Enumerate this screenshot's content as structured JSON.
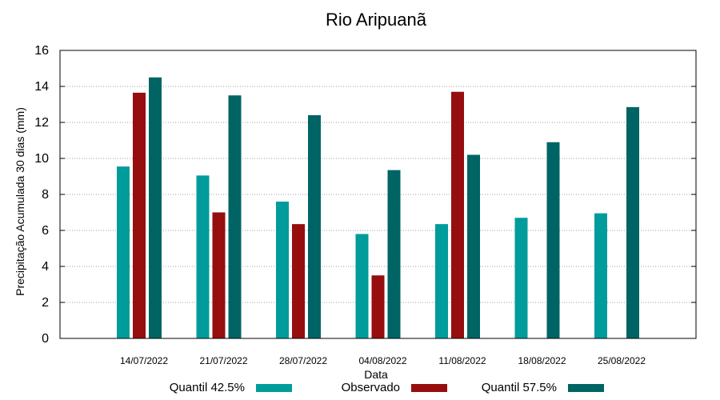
{
  "chart_data": {
    "type": "bar",
    "title": "Rio Aripuanã",
    "xlabel": "Data",
    "ylabel": "Precipitação Acumulada 30 dias (mm)",
    "ylim": [
      0,
      16
    ],
    "yticks": [
      0,
      2,
      4,
      6,
      8,
      10,
      12,
      14,
      16
    ],
    "grid": true,
    "legend_position": "bottom",
    "categories": [
      "14/07/2022",
      "21/07/2022",
      "28/07/2022",
      "04/08/2022",
      "11/08/2022",
      "18/08/2022",
      "25/08/2022"
    ],
    "series": [
      {
        "name": "Quantil 42.5%",
        "color": "#009c9c",
        "values": [
          9.55,
          9.05,
          7.6,
          5.8,
          6.35,
          6.7,
          6.95
        ]
      },
      {
        "name": "Observado",
        "color": "#960e0e",
        "values": [
          13.65,
          7.0,
          6.35,
          3.5,
          13.7,
          null,
          null
        ]
      },
      {
        "name": "Quantil 57.5%",
        "color": "#006464",
        "values": [
          14.5,
          13.5,
          12.4,
          9.35,
          10.2,
          10.9,
          12.85
        ]
      }
    ]
  }
}
